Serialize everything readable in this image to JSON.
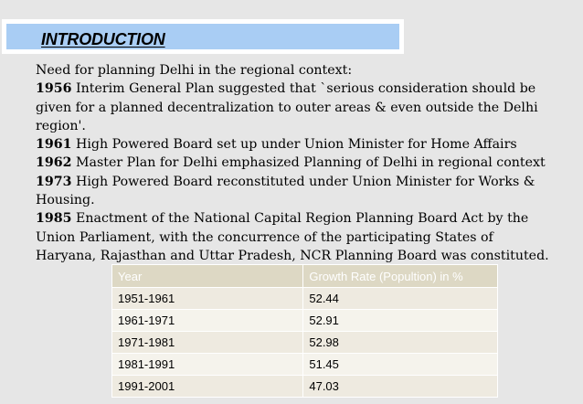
{
  "title": "INTRODUCTION",
  "intro": " Need for planning Delhi in the regional context:",
  "timeline": [
    {
      "year": "1956",
      "text": " Interim General Plan suggested that `serious consideration should be given for a planned decentralization to outer areas & even outside the Delhi region'."
    },
    {
      "year": "1961",
      "text": " High Powered Board set up under Union Minister for Home Affairs"
    },
    {
      "year": "1962",
      "text": " Master Plan for Delhi emphasized Planning of Delhi in regional context"
    },
    {
      "year": "1973",
      "text": " High Powered Board reconstituted under Union Minister for Works & Housing."
    },
    {
      "year": "1985",
      "text": " Enactment of the National Capital Region Planning Board Act by the Union Parliament, with the concurrence of the participating States of Haryana, Rajasthan and Uttar Pradesh,  NCR Planning Board was constituted."
    }
  ],
  "table": {
    "headers": [
      "Year",
      "Growth Rate  (Popultion) in %"
    ],
    "rows": [
      [
        "1951-1961",
        "52.44"
      ],
      [
        "1961-1971",
        "52.91"
      ],
      [
        "1971-1981",
        "52.98"
      ],
      [
        "1981-1991",
        "51.45"
      ],
      [
        "1991-2001",
        "47.03"
      ]
    ]
  },
  "colors": {
    "page_background": "#e6e6e6",
    "title_bar": "#a9cdf4",
    "table_header": "#ddd8c4",
    "table_row": "#eeeae0"
  }
}
